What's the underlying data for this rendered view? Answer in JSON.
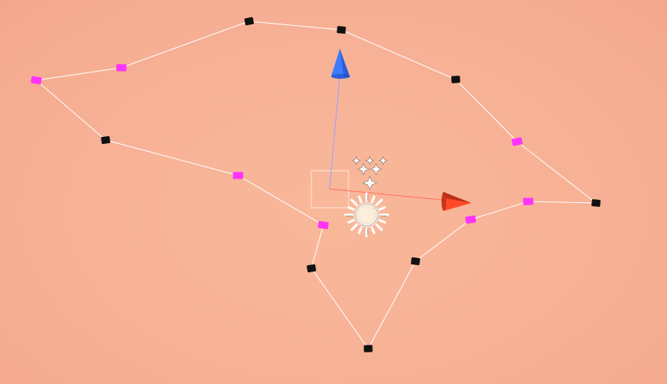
{
  "scene": {
    "background": "#f8b498",
    "spline_color": "#ffffff",
    "anchor_color": "#111111",
    "tangent_color": "#ff33ff",
    "gizmo": {
      "y_axis_color": "#3d7bff",
      "x_axis_color": "#ff4a2a",
      "y_line_color": "#9aa0ff",
      "x_line_color": "#ff6e5a"
    },
    "icons": [
      "sun-light-icon",
      "sparkle-particles-icon"
    ]
  }
}
